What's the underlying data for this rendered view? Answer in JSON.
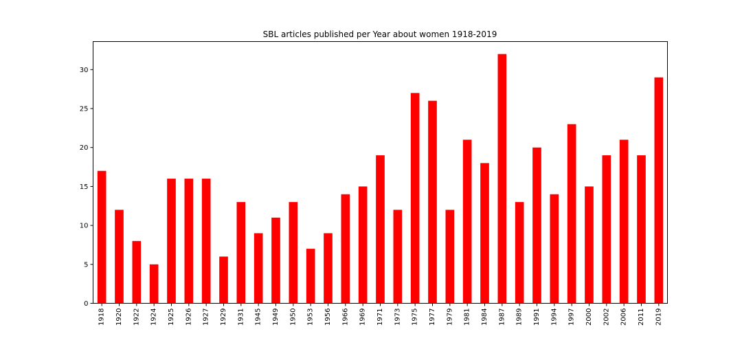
{
  "chart_data": {
    "type": "bar",
    "title": "SBL articles published per Year about women 1918-2019",
    "xlabel": "",
    "ylabel": "",
    "categories": [
      "1918",
      "1920",
      "1922",
      "1924",
      "1925",
      "1926",
      "1927",
      "1929",
      "1931",
      "1945",
      "1949",
      "1950",
      "1953",
      "1956",
      "1966",
      "1969",
      "1971",
      "1973",
      "1975",
      "1977",
      "1979",
      "1981",
      "1984",
      "1987",
      "1989",
      "1991",
      "1994",
      "1997",
      "2000",
      "2002",
      "2006",
      "2011",
      "2019"
    ],
    "values": [
      17,
      12,
      8,
      5,
      16,
      16,
      16,
      6,
      13,
      9,
      11,
      13,
      7,
      9,
      14,
      15,
      19,
      12,
      27,
      26,
      12,
      21,
      18,
      32,
      13,
      20,
      14,
      23,
      15,
      19,
      21,
      19,
      29
    ],
    "ylim": [
      0,
      33.6
    ],
    "yticks": [
      0,
      5,
      10,
      15,
      20,
      25,
      30
    ],
    "bar_color": "#ff0000",
    "grid": false,
    "legend": "none"
  }
}
